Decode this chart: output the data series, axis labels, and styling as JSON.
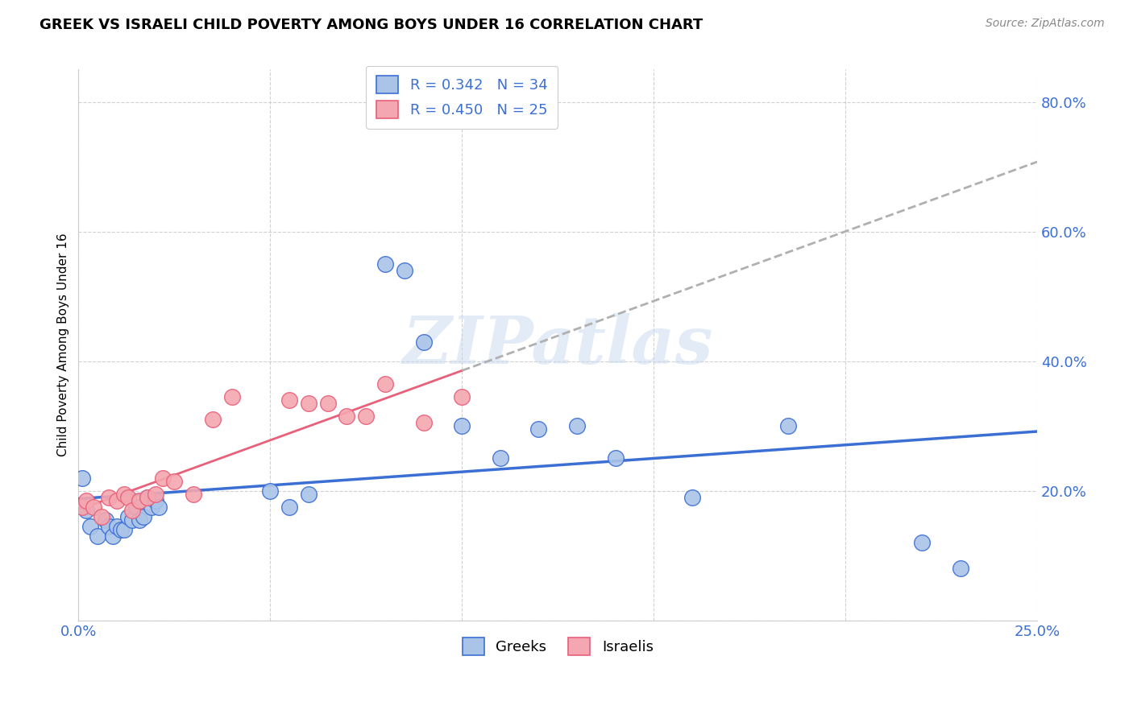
{
  "title": "GREEK VS ISRAELI CHILD POVERTY AMONG BOYS UNDER 16 CORRELATION CHART",
  "source": "Source: ZipAtlas.com",
  "ylabel": "Child Poverty Among Boys Under 16",
  "ytick_labels": [
    "",
    "20.0%",
    "40.0%",
    "60.0%",
    "80.0%"
  ],
  "ytick_values": [
    0.0,
    0.2,
    0.4,
    0.6,
    0.8
  ],
  "xlim": [
    0.0,
    0.25
  ],
  "ylim": [
    0.0,
    0.85
  ],
  "legend_greeks": "Greeks",
  "legend_israelis": "Israelis",
  "greek_R": "0.342",
  "greek_N": "34",
  "israeli_R": "0.450",
  "israeli_N": "25",
  "greek_color": "#aac4e8",
  "israeli_color": "#f4a7b0",
  "greek_line_color": "#3b6fd4",
  "israeli_line_color": "#e8607a",
  "background_color": "#ffffff",
  "watermark": "ZIPatlas",
  "greeks_x": [
    0.001,
    0.002,
    0.003,
    0.005,
    0.007,
    0.008,
    0.009,
    0.01,
    0.011,
    0.012,
    0.013,
    0.014,
    0.015,
    0.016,
    0.017,
    0.018,
    0.019,
    0.02,
    0.021,
    0.05,
    0.055,
    0.06,
    0.08,
    0.085,
    0.09,
    0.1,
    0.11,
    0.12,
    0.13,
    0.14,
    0.16,
    0.185,
    0.22,
    0.23
  ],
  "greeks_y": [
    0.22,
    0.17,
    0.145,
    0.13,
    0.155,
    0.145,
    0.13,
    0.145,
    0.14,
    0.14,
    0.16,
    0.155,
    0.175,
    0.155,
    0.16,
    0.19,
    0.175,
    0.185,
    0.175,
    0.2,
    0.175,
    0.195,
    0.55,
    0.54,
    0.43,
    0.3,
    0.25,
    0.295,
    0.3,
    0.25,
    0.19,
    0.3,
    0.12,
    0.08
  ],
  "israelis_x": [
    0.001,
    0.002,
    0.004,
    0.006,
    0.008,
    0.01,
    0.012,
    0.013,
    0.014,
    0.016,
    0.018,
    0.02,
    0.022,
    0.025,
    0.03,
    0.035,
    0.04,
    0.055,
    0.06,
    0.065,
    0.07,
    0.075,
    0.08,
    0.09,
    0.1
  ],
  "israelis_y": [
    0.175,
    0.185,
    0.175,
    0.16,
    0.19,
    0.185,
    0.195,
    0.19,
    0.17,
    0.185,
    0.19,
    0.195,
    0.22,
    0.215,
    0.195,
    0.31,
    0.345,
    0.34,
    0.335,
    0.335,
    0.315,
    0.315,
    0.365,
    0.305,
    0.345
  ]
}
